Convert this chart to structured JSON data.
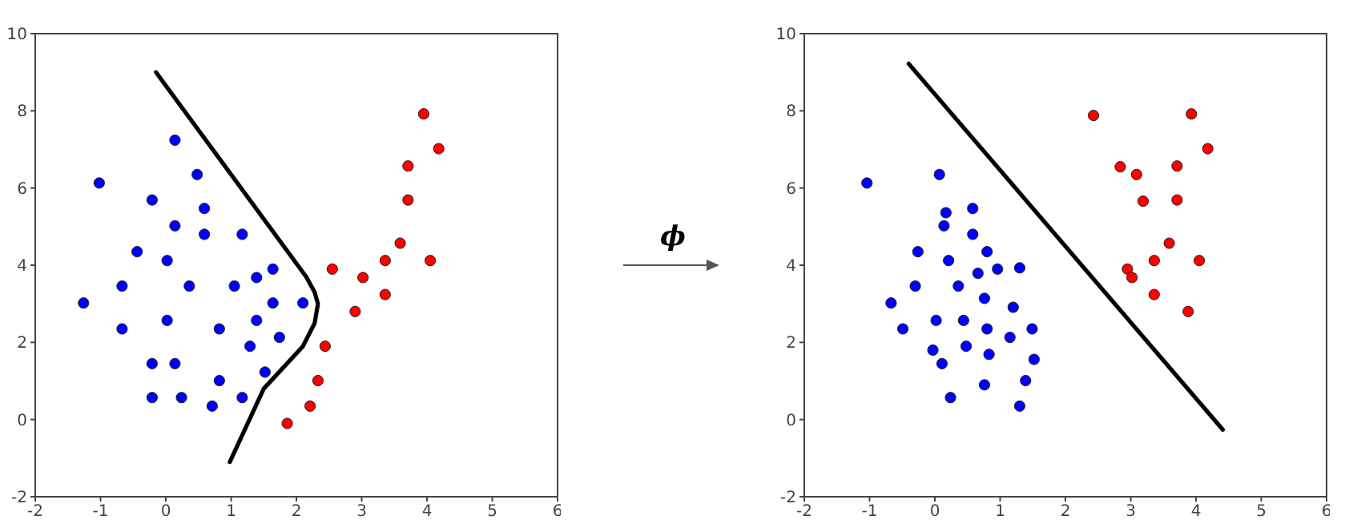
{
  "chart_data": [
    {
      "type": "scatter",
      "xlim": [
        -2,
        6
      ],
      "ylim": [
        -2,
        10
      ],
      "xticks": [
        -2,
        -1,
        0,
        1,
        2,
        3,
        4,
        5,
        6
      ],
      "yticks": [
        -2,
        0,
        2,
        4,
        6,
        8,
        10
      ],
      "marker": "circle",
      "series": [
        {
          "type": "scatter",
          "color": "#0000ff",
          "x": [
            -1.26,
            -1.02,
            -0.67,
            -0.67,
            -0.44,
            -0.21,
            -0.21,
            -0.21,
            0.02,
            0.02,
            0.14,
            0.14,
            0.14,
            0.24,
            0.36,
            0.48,
            0.59,
            0.59,
            0.71,
            0.82,
            0.82,
            1.05,
            1.17,
            1.17,
            1.29,
            1.39,
            1.39,
            1.52,
            1.64,
            1.64,
            1.74,
            2.1
          ],
          "values": [
            3.02,
            6.13,
            3.46,
            2.35,
            4.35,
            5.69,
            1.45,
            0.57,
            4.12,
            2.57,
            7.24,
            5.02,
            1.45,
            0.57,
            3.46,
            6.35,
            5.47,
            4.8,
            0.35,
            2.35,
            1.01,
            3.46,
            4.8,
            0.57,
            1.9,
            3.68,
            2.57,
            1.23,
            3.9,
            3.02,
            2.13,
            3.02
          ]
        },
        {
          "type": "scatter",
          "color": "#ff0000",
          "x": [
            1.86,
            2.21,
            2.33,
            2.44,
            2.55,
            2.9,
            3.02,
            3.36,
            3.36,
            3.59,
            3.71,
            3.71,
            3.95,
            4.05,
            4.18
          ],
          "values": [
            -0.1,
            0.35,
            1.01,
            1.9,
            3.9,
            2.8,
            3.68,
            4.12,
            3.24,
            4.57,
            5.69,
            6.57,
            7.92,
            4.12,
            7.02
          ]
        },
        {
          "type": "line",
          "color": "#000000",
          "marker": "none",
          "x": [
            -0.15,
            2.15,
            2.28,
            2.33,
            2.28,
            2.1,
            1.5,
            0.98
          ],
          "values": [
            9.0,
            3.7,
            3.3,
            3.0,
            2.5,
            1.9,
            0.8,
            -1.1
          ]
        }
      ]
    },
    {
      "type": "other",
      "annotations": [
        "ϕ"
      ]
    },
    {
      "type": "scatter",
      "xlim": [
        -2,
        6
      ],
      "ylim": [
        -2,
        10
      ],
      "xticks": [
        -2,
        -1,
        0,
        1,
        2,
        3,
        4,
        5,
        6
      ],
      "yticks": [
        -2,
        0,
        2,
        4,
        6,
        8,
        10
      ],
      "marker": "circle",
      "series": [
        {
          "type": "scatter",
          "color": "#0000ff",
          "x": [
            -1.04,
            -0.67,
            -0.49,
            -0.3,
            -0.26,
            -0.03,
            0.02,
            0.07,
            0.11,
            0.14,
            0.17,
            0.21,
            0.24,
            0.36,
            0.44,
            0.48,
            0.58,
            0.58,
            0.66,
            0.76,
            0.76,
            0.8,
            0.8,
            0.83,
            0.96,
            1.15,
            1.2,
            1.3,
            1.3,
            1.39,
            1.49,
            1.52
          ],
          "values": [
            6.13,
            3.02,
            2.35,
            3.46,
            4.35,
            1.8,
            2.57,
            6.35,
            1.45,
            5.02,
            5.36,
            4.12,
            0.57,
            3.46,
            2.57,
            1.9,
            5.47,
            4.8,
            3.79,
            3.14,
            0.9,
            4.35,
            2.35,
            1.69,
            3.9,
            2.13,
            2.91,
            3.93,
            0.35,
            1.01,
            2.35,
            1.56
          ]
        },
        {
          "type": "scatter",
          "color": "#ff0000",
          "x": [
            2.43,
            2.84,
            2.95,
            3.02,
            3.09,
            3.19,
            3.36,
            3.36,
            3.59,
            3.71,
            3.71,
            3.88,
            3.93,
            4.05,
            4.18
          ],
          "values": [
            7.88,
            6.55,
            3.9,
            3.68,
            6.35,
            5.66,
            3.24,
            4.12,
            4.57,
            6.57,
            5.69,
            2.8,
            7.92,
            4.12,
            7.02
          ]
        },
        {
          "type": "line",
          "color": "#000000",
          "marker": "none",
          "x": [
            -0.4,
            4.41
          ],
          "values": [
            9.22,
            -0.26
          ]
        }
      ]
    }
  ]
}
